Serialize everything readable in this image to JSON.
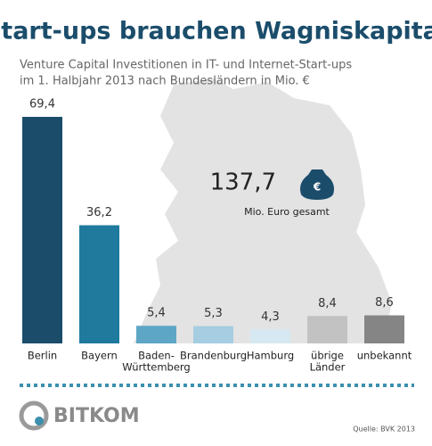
{
  "chart_data": {
    "type": "bar",
    "title": "Start-ups brauchen Wagniskapital",
    "subtitle": [
      "Venture Capital Investitionen in IT- und Internet-Start-ups",
      "im 1. Halbjahr 2013 nach Bundesländern in Mio. €"
    ],
    "categories": [
      [
        "Berlin"
      ],
      [
        "Bayern"
      ],
      [
        "Baden-",
        "Württemberg"
      ],
      [
        "Brandenburg"
      ],
      [
        "Hamburg"
      ],
      [
        "übrige",
        "Länder"
      ],
      [
        "unbekannt"
      ]
    ],
    "values": [
      69.4,
      36.2,
      5.4,
      5.3,
      4.3,
      8.4,
      8.6
    ],
    "value_labels": [
      "69,4",
      "36,2",
      "5,4",
      "5,3",
      "4,3",
      "8,4",
      "8,6"
    ],
    "colors": [
      "#1b4d6b",
      "#1f7a9e",
      "#5ea6c6",
      "#a6cde1",
      "#d6e8f2",
      "#c2c2c2",
      "#858585"
    ],
    "total": {
      "value": 137.7,
      "label": "137,7",
      "caption": "Mio. Euro gesamt"
    },
    "logo": "BITKOM",
    "source": "Quelle: BVK 2013"
  }
}
